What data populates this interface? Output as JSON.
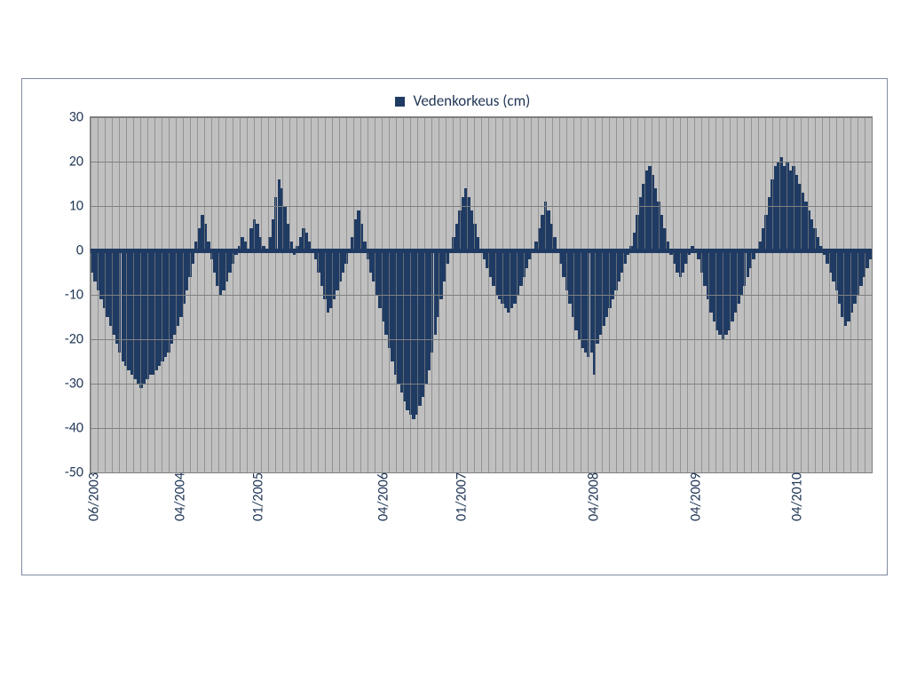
{
  "chart": {
    "type": "bar",
    "legend_label": "Vedenkorkeus (cm)",
    "series_color": "#1f3b63",
    "background_color": "#c0c0c0",
    "plot_fill": "#c0c0c0",
    "grid_color": "#808080",
    "frame_border_color": "#7f8aa0",
    "text_color": "#1f3555",
    "fonts": {
      "tick_fontsize": 16,
      "legend_fontsize": 17
    },
    "ylim": [
      -50,
      30
    ],
    "ytick_step": 10,
    "yticks": [
      30,
      20,
      10,
      0,
      -10,
      -20,
      -30,
      -40,
      -50
    ],
    "xticks": [
      {
        "label": "06/2003",
        "pos": 0.0
      },
      {
        "label": "04/2004",
        "pos": 0.11
      },
      {
        "label": "01/2005",
        "pos": 0.21
      },
      {
        "label": "04/2006",
        "pos": 0.37
      },
      {
        "label": "01/2007",
        "pos": 0.47
      },
      {
        "label": "04/2008",
        "pos": 0.64
      },
      {
        "label": "04/2009",
        "pos": 0.77
      },
      {
        "label": "04/2010",
        "pos": 0.9
      }
    ],
    "minor_x_gridlines": 110,
    "zero_line_width": 5,
    "values": [
      -5,
      -7,
      -9,
      -11,
      -13,
      -15,
      -17,
      -19,
      -21,
      -23,
      -25,
      -26,
      -27,
      -28,
      -29,
      -30,
      -31,
      -30,
      -29,
      -28,
      -28,
      -27,
      -26,
      -25,
      -24,
      -23,
      -21,
      -19,
      -17,
      -15,
      -12,
      -9,
      -6,
      -3,
      2,
      5,
      8,
      6,
      2,
      -2,
      -5,
      -8,
      -10,
      -9,
      -7,
      -5,
      -3,
      -1,
      1,
      3,
      2,
      0,
      5,
      7,
      6,
      3,
      1,
      0,
      3,
      7,
      12,
      16,
      14,
      10,
      6,
      2,
      -1,
      1,
      3,
      5,
      4,
      2,
      0,
      -2,
      -5,
      -8,
      -11,
      -14,
      -13,
      -11,
      -9,
      -7,
      -5,
      -3,
      0,
      3,
      7,
      9,
      6,
      2,
      -2,
      -5,
      -7,
      -10,
      -13,
      -16,
      -19,
      -22,
      -25,
      -28,
      -30,
      -32,
      -34,
      -36,
      -37,
      -38,
      -37,
      -35,
      -33,
      -30,
      -27,
      -23,
      -19,
      -15,
      -11,
      -7,
      -3,
      0,
      3,
      6,
      9,
      12,
      14,
      12,
      9,
      6,
      3,
      0,
      -2,
      -4,
      -6,
      -8,
      -10,
      -11,
      -12,
      -13,
      -14,
      -13,
      -12,
      -10,
      -8,
      -6,
      -4,
      -2,
      0,
      2,
      5,
      8,
      11,
      9,
      6,
      3,
      0,
      -3,
      -6,
      -9,
      -12,
      -15,
      -18,
      -20,
      -22,
      -23,
      -24,
      -23,
      -28,
      -21,
      -19,
      -17,
      -15,
      -13,
      -11,
      -9,
      -7,
      -5,
      -3,
      -1,
      1,
      4,
      8,
      12,
      15,
      18,
      19,
      17,
      14,
      11,
      8,
      5,
      2,
      -1,
      -3,
      -5,
      -6,
      -5,
      -3,
      -1,
      1,
      0,
      -2,
      -5,
      -8,
      -11,
      -14,
      -16,
      -18,
      -19,
      -20,
      -19,
      -18,
      -16,
      -14,
      -12,
      -10,
      -8,
      -6,
      -4,
      -2,
      0,
      2,
      5,
      8,
      12,
      16,
      19,
      20,
      21,
      19,
      20,
      18,
      19,
      17,
      15,
      13,
      11,
      9,
      7,
      5,
      3,
      1,
      -1,
      -3,
      -5,
      -7,
      -9,
      -12,
      -15,
      -17,
      -16,
      -14,
      -12,
      -10,
      -8,
      -6,
      -4,
      -2
    ]
  }
}
